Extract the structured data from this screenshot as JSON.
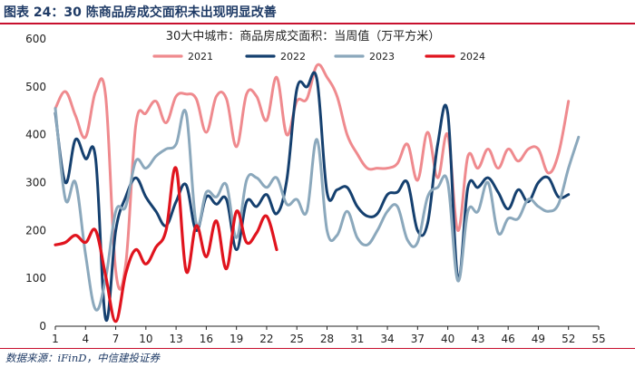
{
  "figure": {
    "label": "图表 24：30 陈商品房成交面积未出现明显改善",
    "source": "数据来源：iFinD，中信建投证券"
  },
  "colors": {
    "header_rule": "#c8102e",
    "s2021": "#ef8a8e",
    "s2022": "#15406f",
    "s2023": "#8ba8bc",
    "s2024": "#e0141e",
    "axis": "#222222"
  },
  "chart_data": {
    "type": "line",
    "title": "30大中城市：商品房成交面积：当周值（万平方米）",
    "xlabel": "",
    "ylabel": "",
    "xlim": [
      1,
      55
    ],
    "ylim": [
      0,
      600
    ],
    "yticks": [
      0,
      100,
      200,
      300,
      400,
      500,
      600
    ],
    "xticks": [
      1,
      4,
      7,
      10,
      13,
      16,
      19,
      22,
      25,
      28,
      31,
      34,
      37,
      40,
      43,
      46,
      49,
      52,
      55
    ],
    "x": [
      1,
      2,
      3,
      4,
      5,
      6,
      7,
      8,
      9,
      10,
      11,
      12,
      13,
      14,
      15,
      16,
      17,
      18,
      19,
      20,
      21,
      22,
      23,
      24,
      25,
      26,
      27,
      28,
      29,
      30,
      31,
      32,
      33,
      34,
      35,
      36,
      37,
      38,
      39,
      40,
      41,
      42,
      43,
      44,
      45,
      46,
      47,
      48,
      49,
      50,
      51,
      52,
      53
    ],
    "legend_position": "top",
    "series": [
      {
        "name": "2021",
        "color_key": "s2021",
        "values": [
          455,
          490,
          440,
          395,
          490,
          480,
          115,
          130,
          420,
          445,
          470,
          425,
          480,
          485,
          475,
          405,
          480,
          475,
          375,
          485,
          480,
          430,
          520,
          400,
          470,
          475,
          545,
          520,
          480,
          400,
          360,
          330,
          330,
          330,
          340,
          380,
          305,
          405,
          310,
          400,
          200,
          355,
          330,
          370,
          330,
          370,
          345,
          370,
          370,
          320,
          360,
          470,
          null
        ]
      },
      {
        "name": "2022",
        "color_key": "s2022",
        "values": [
          445,
          300,
          390,
          350,
          350,
          15,
          200,
          270,
          310,
          270,
          240,
          210,
          260,
          295,
          200,
          270,
          255,
          265,
          160,
          260,
          250,
          275,
          235,
          305,
          495,
          500,
          515,
          280,
          285,
          290,
          250,
          230,
          235,
          275,
          280,
          300,
          200,
          215,
          380,
          445,
          100,
          290,
          290,
          310,
          280,
          245,
          285,
          260,
          300,
          310,
          270,
          275,
          null
        ]
      },
      {
        "name": "2023",
        "color_key": "s2023",
        "values": [
          455,
          265,
          300,
          150,
          35,
          100,
          240,
          250,
          345,
          330,
          355,
          370,
          380,
          445,
          215,
          280,
          270,
          295,
          185,
          305,
          310,
          290,
          310,
          255,
          265,
          240,
          390,
          200,
          190,
          240,
          185,
          170,
          200,
          240,
          250,
          180,
          175,
          270,
          290,
          300,
          95,
          240,
          240,
          300,
          195,
          225,
          225,
          265,
          250,
          240,
          255,
          330,
          395
        ]
      },
      {
        "name": "2024",
        "color_key": "s2024",
        "values": [
          170,
          175,
          190,
          175,
          200,
          105,
          10,
          110,
          160,
          130,
          165,
          200,
          330,
          115,
          210,
          145,
          220,
          120,
          240,
          175,
          195,
          230,
          160,
          null,
          null,
          null,
          null,
          null,
          null,
          null,
          null,
          null,
          null,
          null,
          null,
          null,
          null,
          null,
          null,
          null,
          null,
          null,
          null,
          null,
          null,
          null,
          null,
          null,
          null,
          null,
          null,
          null,
          null
        ]
      }
    ]
  }
}
